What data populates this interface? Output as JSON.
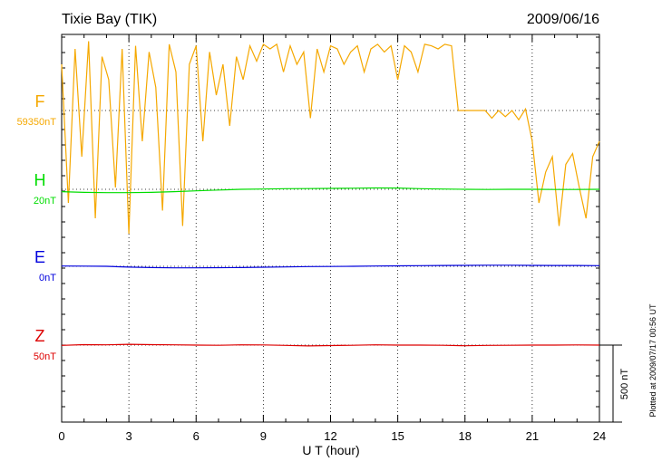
{
  "chart_data": {
    "type": "line",
    "title": "Tixie Bay (TIK)",
    "date": "2009/06/16",
    "xlabel": "U T (hour)",
    "x_ticks": [
      "0",
      "3",
      "6",
      "9",
      "12",
      "15",
      "18",
      "21",
      "24"
    ],
    "xlim": [
      0,
      24
    ],
    "grid": true,
    "scale_label": "500 nT",
    "plotted_note": "Plotted at 2009/07/17 00:56 UT",
    "series": [
      {
        "name": "F",
        "baseline_label": "59350nT",
        "color": "#f5a800",
        "baseline_nT": 59350,
        "x": [
          0.0,
          0.3,
          0.6,
          0.9,
          1.2,
          1.5,
          1.8,
          2.1,
          2.4,
          2.7,
          3.0,
          3.3,
          3.6,
          3.9,
          4.2,
          4.5,
          4.8,
          5.1,
          5.4,
          5.7,
          6.0,
          6.3,
          6.6,
          6.9,
          7.2,
          7.5,
          7.8,
          8.1,
          8.4,
          8.7,
          9.0,
          9.3,
          9.6,
          9.9,
          10.2,
          10.5,
          10.8,
          11.1,
          11.4,
          11.7,
          12.0,
          12.3,
          12.6,
          12.9,
          13.2,
          13.5,
          13.8,
          14.1,
          14.4,
          14.7,
          15.0,
          15.3,
          15.6,
          15.9,
          16.2,
          16.5,
          16.8,
          17.1,
          17.4,
          17.7,
          18.0,
          18.3,
          18.6,
          18.9,
          19.2,
          19.5,
          19.8,
          20.1,
          20.4,
          20.7,
          21.0,
          21.3,
          21.6,
          21.9,
          22.2,
          22.5,
          22.8,
          23.1,
          23.4,
          23.7,
          24.0
        ],
        "y": [
          300,
          -600,
          400,
          -300,
          450,
          -700,
          350,
          200,
          -500,
          400,
          -800,
          420,
          -200,
          380,
          150,
          -650,
          430,
          250,
          -750,
          300,
          420,
          -200,
          380,
          100,
          300,
          -100,
          350,
          200,
          420,
          320,
          430,
          400,
          430,
          250,
          420,
          300,
          380,
          -50,
          400,
          250,
          420,
          400,
          300,
          380,
          420,
          250,
          400,
          430,
          380,
          420,
          200,
          420,
          380,
          250,
          430,
          420,
          400,
          430,
          420,
          0,
          0,
          0,
          0,
          0,
          -50,
          0,
          -40,
          0,
          -60,
          10,
          -200,
          -600,
          -400,
          -300,
          -750,
          -350,
          -280,
          -500,
          -700,
          -300,
          -200
        ]
      },
      {
        "name": "H",
        "baseline_label": "20nT",
        "color": "#00dd00",
        "baseline_nT": 20,
        "x": [
          0,
          1,
          2,
          3,
          4,
          5,
          6,
          7,
          8,
          9,
          10,
          11,
          12,
          13,
          14,
          15,
          16,
          17,
          18,
          19,
          20,
          21,
          22,
          23,
          24
        ],
        "y": [
          -15,
          -20,
          -22,
          -22,
          -20,
          -15,
          -10,
          -5,
          0,
          2,
          4,
          5,
          6,
          7,
          9,
          8,
          4,
          2,
          0,
          -1,
          0,
          0,
          -1,
          -1,
          0
        ]
      },
      {
        "name": "E",
        "baseline_label": "0nT",
        "color": "#0000dd",
        "baseline_nT": 0,
        "x": [
          0,
          1,
          2,
          3,
          4,
          5,
          6,
          7,
          8,
          9,
          10,
          11,
          12,
          13,
          14,
          15,
          16,
          17,
          18,
          19,
          20,
          21,
          22,
          23,
          24
        ],
        "y": [
          2,
          1,
          0,
          -5,
          -8,
          -10,
          -10,
          -9,
          -8,
          -6,
          -4,
          -2,
          -1,
          0,
          2,
          3,
          4,
          5,
          6,
          7,
          7,
          6,
          5,
          5,
          4
        ]
      },
      {
        "name": "Z",
        "baseline_label": "50nT",
        "color": "#dd0000",
        "baseline_nT": 50,
        "x": [
          0,
          1,
          2,
          3,
          4,
          5,
          6,
          7,
          8,
          9,
          10,
          11,
          12,
          13,
          14,
          15,
          16,
          17,
          18,
          19,
          20,
          21,
          22,
          23,
          24
        ],
        "y": [
          -2,
          3,
          2,
          5,
          3,
          2,
          0,
          -1,
          2,
          1,
          -2,
          -5,
          -3,
          -1,
          2,
          0,
          0,
          -1,
          -4,
          -2,
          -1,
          0,
          0,
          1,
          0
        ]
      }
    ]
  }
}
